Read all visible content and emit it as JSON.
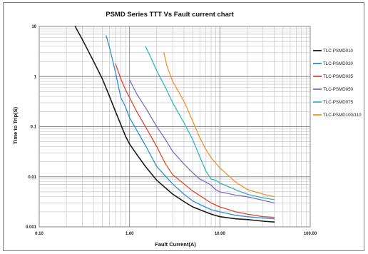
{
  "chart_data": {
    "type": "line",
    "title": "PSMD Series TTT Vs Fault current chart",
    "xlabel": "Fault Current(A)",
    "ylabel": "Time to Trip(S)",
    "x_scale": "log",
    "y_scale": "log",
    "xlim": [
      0.1,
      100
    ],
    "ylim": [
      0.001,
      10
    ],
    "x_ticks": [
      {
        "value": 0.1,
        "label": "0.10"
      },
      {
        "value": 1,
        "label": "1.00"
      },
      {
        "value": 10,
        "label": "10.00"
      },
      {
        "value": 100,
        "label": "100.00"
      }
    ],
    "y_ticks": [
      {
        "value": 10,
        "label": "10"
      },
      {
        "value": 1,
        "label": "1"
      },
      {
        "value": 0.1,
        "label": "0.1"
      },
      {
        "value": 0.01,
        "label": "0.01"
      },
      {
        "value": 0.001,
        "label": "0.001"
      }
    ],
    "grid": true,
    "legend_position": "right",
    "series": [
      {
        "name": "TLC-PSMD010",
        "color": "#1a1a1a",
        "points": [
          [
            0.25,
            10
          ],
          [
            0.3,
            5.5
          ],
          [
            0.4,
            2
          ],
          [
            0.5,
            0.9
          ],
          [
            0.6,
            0.4
          ],
          [
            0.7,
            0.2
          ],
          [
            0.8,
            0.11
          ],
          [
            0.9,
            0.065
          ],
          [
            1.0,
            0.045
          ],
          [
            1.2,
            0.028
          ],
          [
            1.5,
            0.016
          ],
          [
            2.0,
            0.0085
          ],
          [
            3.0,
            0.0045
          ],
          [
            4.0,
            0.0032
          ],
          [
            5.0,
            0.0025
          ],
          [
            6.0,
            0.0022
          ],
          [
            8.0,
            0.0018
          ],
          [
            10,
            0.0016
          ],
          [
            15,
            0.00145
          ],
          [
            20,
            0.0014
          ],
          [
            30,
            0.0013
          ],
          [
            40,
            0.00125
          ]
        ]
      },
      {
        "name": "TLC-PSMD020",
        "color": "#2a8fd4",
        "points": [
          [
            0.55,
            6.5
          ],
          [
            0.6,
            3.8
          ],
          [
            0.7,
            1.2
          ],
          [
            0.8,
            0.38
          ],
          [
            0.9,
            0.25
          ],
          [
            1.0,
            0.15
          ],
          [
            1.2,
            0.085
          ],
          [
            1.5,
            0.042
          ],
          [
            2.0,
            0.016
          ],
          [
            3.0,
            0.0072
          ],
          [
            4.0,
            0.0045
          ],
          [
            5.0,
            0.0033
          ],
          [
            6.0,
            0.0028
          ],
          [
            8.0,
            0.0022
          ],
          [
            10,
            0.002
          ],
          [
            15,
            0.0017
          ],
          [
            20,
            0.0016
          ],
          [
            30,
            0.0015
          ],
          [
            40,
            0.00145
          ]
        ]
      },
      {
        "name": "TLC-PSMD035",
        "color": "#d94a2e",
        "points": [
          [
            0.7,
            1.8
          ],
          [
            0.8,
            0.9
          ],
          [
            0.9,
            0.55
          ],
          [
            1.0,
            0.38
          ],
          [
            1.2,
            0.2
          ],
          [
            1.5,
            0.1
          ],
          [
            2.0,
            0.04
          ],
          [
            2.5,
            0.018
          ],
          [
            3.0,
            0.011
          ],
          [
            4.0,
            0.0072
          ],
          [
            5.0,
            0.0052
          ],
          [
            6.0,
            0.0042
          ],
          [
            8.0,
            0.003
          ],
          [
            10,
            0.0025
          ],
          [
            15,
            0.002
          ],
          [
            20,
            0.0018
          ],
          [
            30,
            0.0016
          ],
          [
            40,
            0.00155
          ]
        ]
      },
      {
        "name": "TLC-PSMD050",
        "color": "#7c6cc4",
        "points": [
          [
            1.0,
            0.85
          ],
          [
            1.2,
            0.45
          ],
          [
            1.5,
            0.24
          ],
          [
            2.0,
            0.1
          ],
          [
            2.5,
            0.055
          ],
          [
            3.0,
            0.032
          ],
          [
            4.0,
            0.018
          ],
          [
            5.0,
            0.012
          ],
          [
            6.0,
            0.009
          ],
          [
            7.0,
            0.0078
          ],
          [
            8.0,
            0.0068
          ],
          [
            9.0,
            0.0055
          ],
          [
            10,
            0.005
          ],
          [
            15,
            0.0043
          ],
          [
            20,
            0.004
          ],
          [
            30,
            0.0034
          ],
          [
            40,
            0.003
          ]
        ]
      },
      {
        "name": "TLC-PSMD075",
        "color": "#30b8c4",
        "points": [
          [
            1.5,
            4
          ],
          [
            1.7,
            2.5
          ],
          [
            2.0,
            1.3
          ],
          [
            2.5,
            0.6
          ],
          [
            3.0,
            0.3
          ],
          [
            4.0,
            0.12
          ],
          [
            5.0,
            0.055
          ],
          [
            6.0,
            0.025
          ],
          [
            7.0,
            0.013
          ],
          [
            8.0,
            0.009
          ],
          [
            9.0,
            0.0085
          ],
          [
            10,
            0.0075
          ],
          [
            15,
            0.0055
          ],
          [
            20,
            0.0045
          ],
          [
            30,
            0.0038
          ],
          [
            40,
            0.0035
          ]
        ]
      },
      {
        "name": "TLC-PSMD100/110",
        "color": "#f0922e",
        "points": [
          [
            2.4,
            3
          ],
          [
            2.6,
            1.6
          ],
          [
            3.0,
            0.8
          ],
          [
            4.0,
            0.32
          ],
          [
            5.0,
            0.13
          ],
          [
            6.0,
            0.06
          ],
          [
            7.0,
            0.035
          ],
          [
            8.0,
            0.024
          ],
          [
            10,
            0.015
          ],
          [
            15,
            0.0078
          ],
          [
            20,
            0.0056
          ],
          [
            30,
            0.0045
          ],
          [
            40,
            0.004
          ]
        ]
      }
    ]
  }
}
